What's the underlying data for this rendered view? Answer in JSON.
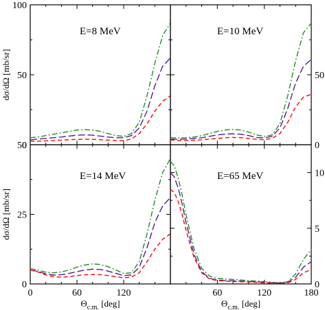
{
  "chart_data": [
    {
      "type": "line",
      "label": "E=8 MeV",
      "x_range": [
        0,
        180
      ],
      "ylim": [
        0,
        100
      ],
      "y_ticks": [
        0,
        50,
        100
      ],
      "y_tick_labels_side": "left",
      "ylabel": "dσ/dΩ [mb/sr]",
      "series": [
        {
          "color": "#228b22",
          "dash": "dashdot",
          "x": [
            0,
            10,
            20,
            30,
            40,
            50,
            60,
            70,
            80,
            90,
            100,
            110,
            120,
            130,
            140,
            150,
            160,
            170,
            180
          ],
          "y": [
            5,
            5.5,
            6.5,
            7.5,
            8.5,
            9.5,
            10.5,
            10.8,
            10.5,
            9.5,
            8,
            6.5,
            6,
            8,
            16,
            35,
            58,
            78,
            87
          ]
        },
        {
          "color": "#551a8b",
          "dash": "longdash",
          "x": [
            0,
            10,
            20,
            30,
            40,
            50,
            60,
            70,
            80,
            90,
            100,
            110,
            120,
            130,
            140,
            150,
            160,
            170,
            180
          ],
          "y": [
            3.5,
            4,
            4.5,
            5,
            5.5,
            6.2,
            6.8,
            7,
            6.8,
            6.2,
            5.5,
            5,
            5,
            6.5,
            12,
            24,
            42,
            56,
            62
          ]
        },
        {
          "color": "#ff0000",
          "dash": "dash",
          "x": [
            0,
            10,
            20,
            30,
            40,
            50,
            60,
            70,
            80,
            90,
            100,
            110,
            120,
            130,
            140,
            150,
            160,
            170,
            180
          ],
          "y": [
            2.5,
            2.5,
            2.8,
            3,
            3.3,
            3.6,
            3.8,
            3.9,
            3.8,
            3.6,
            3.3,
            3,
            3,
            4,
            8,
            15,
            24,
            31,
            35
          ]
        }
      ]
    },
    {
      "type": "line",
      "label": "E=10 MeV",
      "x_range": [
        0,
        180
      ],
      "ylim": [
        0,
        100
      ],
      "y_ticks": [
        0,
        50
      ],
      "y_tick_labels_side": "right",
      "series": [
        {
          "color": "#228b22",
          "dash": "dashdot",
          "x": [
            0,
            10,
            20,
            30,
            40,
            50,
            60,
            70,
            80,
            90,
            100,
            110,
            120,
            130,
            140,
            150,
            160,
            170,
            180
          ],
          "y": [
            5,
            4.8,
            5,
            5.5,
            6.5,
            8,
            9.5,
            10.5,
            11,
            10.5,
            9,
            7,
            6,
            7,
            15,
            35,
            60,
            80,
            87
          ]
        },
        {
          "color": "#551a8b",
          "dash": "longdash",
          "x": [
            0,
            10,
            20,
            30,
            40,
            50,
            60,
            70,
            80,
            90,
            100,
            110,
            120,
            130,
            140,
            150,
            160,
            170,
            180
          ],
          "y": [
            4,
            3.8,
            4,
            4.5,
            5,
            6,
            7,
            7.5,
            7.8,
            7.5,
            6.5,
            5.2,
            4.8,
            6,
            12,
            26,
            44,
            56,
            61
          ]
        },
        {
          "color": "#ff0000",
          "dash": "dash",
          "x": [
            0,
            10,
            20,
            30,
            40,
            50,
            60,
            70,
            80,
            90,
            100,
            110,
            120,
            130,
            140,
            150,
            160,
            170,
            180
          ],
          "y": [
            3.5,
            3,
            3,
            3.2,
            3.5,
            4,
            4.5,
            5,
            5.2,
            5,
            4.5,
            3.8,
            3.5,
            4.5,
            8,
            16,
            27,
            34,
            36
          ]
        }
      ]
    },
    {
      "type": "line",
      "label": "E=14 MeV",
      "x_range": [
        0,
        180
      ],
      "x_ticks": [
        0,
        60,
        120
      ],
      "ylim": [
        0,
        50
      ],
      "y_ticks": [
        0,
        25,
        50
      ],
      "y_tick_labels_side": "left",
      "xlabel": "Θc.m. [deg]",
      "ylabel": "dσ/dΩ [mb/sr]",
      "series": [
        {
          "color": "#228b22",
          "dash": "dashdot",
          "x": [
            0,
            10,
            20,
            30,
            40,
            50,
            60,
            70,
            80,
            90,
            100,
            110,
            120,
            130,
            140,
            150,
            160,
            170,
            180
          ],
          "y": [
            5.5,
            5,
            4.2,
            4,
            4.3,
            5,
            6,
            6.8,
            7.2,
            7,
            6.2,
            5,
            3.8,
            4,
            8,
            18,
            30,
            40,
            45
          ]
        },
        {
          "color": "#551a8b",
          "dash": "longdash",
          "x": [
            0,
            10,
            20,
            30,
            40,
            50,
            60,
            70,
            80,
            90,
            100,
            110,
            120,
            130,
            140,
            150,
            160,
            170,
            180
          ],
          "y": [
            5,
            4.5,
            3.6,
            3.2,
            3.3,
            3.8,
            4.4,
            5,
            5.3,
            5.2,
            4.6,
            3.8,
            3,
            3.2,
            6,
            13,
            22,
            28,
            31
          ]
        },
        {
          "color": "#ff0000",
          "dash": "dash",
          "x": [
            0,
            10,
            20,
            30,
            40,
            50,
            60,
            70,
            80,
            90,
            100,
            110,
            120,
            130,
            140,
            150,
            160,
            170,
            180
          ],
          "y": [
            5,
            4.3,
            3.2,
            2.6,
            2.4,
            2.6,
            3,
            3.3,
            3.4,
            3.3,
            3,
            2.6,
            2.2,
            2.5,
            4,
            8,
            12.5,
            16,
            18
          ]
        }
      ]
    },
    {
      "type": "line",
      "label": "E=65 MeV",
      "x_range": [
        0,
        180
      ],
      "x_ticks": [
        60,
        120,
        180
      ],
      "ylim": [
        0,
        12.5
      ],
      "y_ticks": [
        0,
        5,
        10
      ],
      "y_tick_labels_side": "right",
      "xlabel": "Θc.m. [deg]",
      "series": [
        {
          "color": "#228b22",
          "dash": "dashdot",
          "x": [
            0,
            5,
            10,
            15,
            20,
            30,
            40,
            50,
            60,
            70,
            80,
            90,
            100,
            110,
            120,
            130,
            140,
            150,
            160,
            170,
            180
          ],
          "y": [
            11,
            10.6,
            9.5,
            8,
            6.2,
            3.2,
            1.4,
            0.7,
            0.5,
            0.45,
            0.4,
            0.35,
            0.3,
            0.25,
            0.2,
            0.15,
            0.1,
            0.2,
            0.9,
            2.2,
            3.1
          ]
        },
        {
          "color": "#551a8b",
          "dash": "longdash",
          "x": [
            0,
            5,
            10,
            15,
            20,
            30,
            40,
            50,
            60,
            70,
            80,
            90,
            100,
            110,
            120,
            130,
            140,
            150,
            160,
            170,
            180
          ],
          "y": [
            10,
            9.6,
            8.6,
            7.2,
            5.5,
            2.7,
            1.1,
            0.5,
            0.35,
            0.3,
            0.28,
            0.25,
            0.22,
            0.2,
            0.15,
            0.1,
            0.08,
            0.15,
            0.6,
            1.5,
            2
          ]
        },
        {
          "color": "#ff0000",
          "dash": "dash",
          "x": [
            0,
            5,
            10,
            15,
            20,
            30,
            40,
            50,
            60,
            70,
            80,
            90,
            100,
            110,
            120,
            130,
            140,
            150,
            160,
            170,
            180
          ],
          "y": [
            8.5,
            8.2,
            7.4,
            6.2,
            4.8,
            2.4,
            1,
            0.45,
            0.3,
            0.25,
            0.22,
            0.2,
            0.18,
            0.15,
            0.1,
            0.06,
            0.05,
            0.1,
            0.4,
            1,
            1.3
          ]
        }
      ]
    }
  ]
}
